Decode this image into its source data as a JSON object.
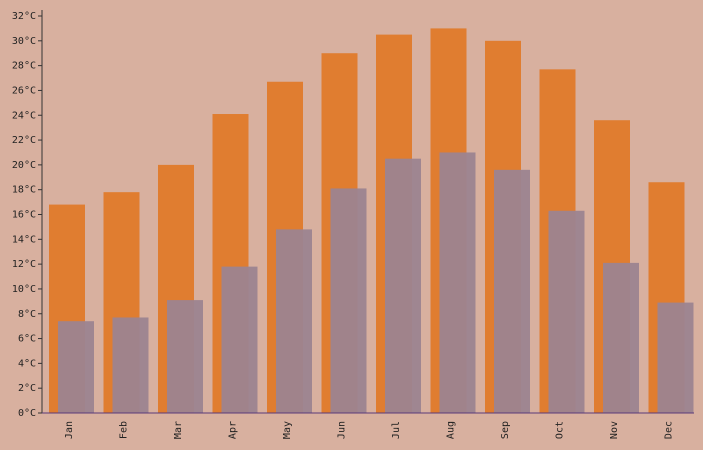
{
  "chart_data": {
    "type": "bar",
    "categories": [
      "Jan",
      "Feb",
      "Mar",
      "Apr",
      "May",
      "Jun",
      "Jul",
      "Aug",
      "Sep",
      "Oct",
      "Nov",
      "Dec"
    ],
    "series": [
      {
        "color": "#e07a2a",
        "values": [
          16.8,
          17.8,
          20,
          24.1,
          26.7,
          29,
          30.5,
          31,
          30,
          27.7,
          23.6,
          18.6
        ]
      },
      {
        "color": "#9c8490",
        "values": [
          7.4,
          7.7,
          9.1,
          11.8,
          14.8,
          18.1,
          20.5,
          21,
          19.6,
          16.3,
          12.1,
          8.9
        ]
      }
    ],
    "ylim": [
      0,
      32
    ],
    "yticks": [
      {
        "value": 0,
        "label": "0°C"
      },
      {
        "value": 2,
        "label": "2°C"
      },
      {
        "value": 4,
        "label": "4°C"
      },
      {
        "value": 6,
        "label": "6°C"
      },
      {
        "value": 8,
        "label": "8°C"
      },
      {
        "value": 10,
        "label": "10°C"
      },
      {
        "value": 12,
        "label": "12°C"
      },
      {
        "value": 14,
        "label": "14°C"
      },
      {
        "value": 16,
        "label": "16°C"
      },
      {
        "value": 18,
        "label": "18°C"
      },
      {
        "value": 20,
        "label": "20°C"
      },
      {
        "value": 22,
        "label": "22°C"
      },
      {
        "value": 24,
        "label": "24°C"
      },
      {
        "value": 26,
        "label": "26°C"
      },
      {
        "value": 28,
        "label": "28°C"
      },
      {
        "value": 30,
        "label": "30°C"
      },
      {
        "value": 32,
        "label": "32°C"
      }
    ],
    "grid": false
  }
}
